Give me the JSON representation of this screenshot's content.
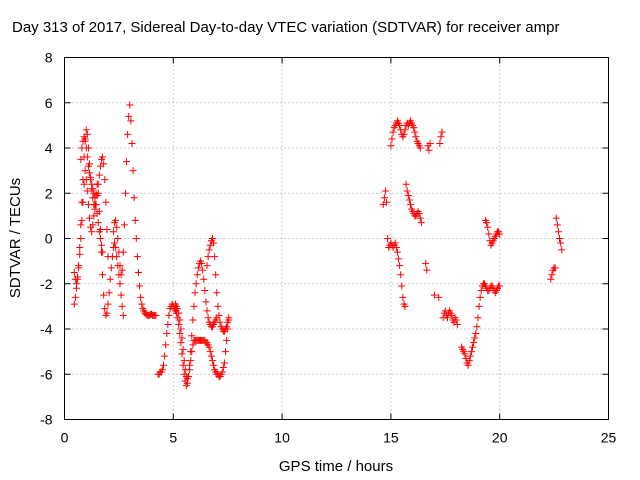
{
  "chart_data": {
    "type": "scatter",
    "title": "Day 313 of 2017, Sidereal Day-to-day VTEC variation (SDTVAR) for receiver ampr",
    "xlabel": "GPS time / hours",
    "ylabel": "SDTVAR / TECUs",
    "xlim": [
      0,
      25
    ],
    "ylim": [
      -8,
      8
    ],
    "xticks": [
      0,
      5,
      10,
      15,
      20,
      25
    ],
    "yticks": [
      -8,
      -6,
      -4,
      -2,
      0,
      2,
      4,
      6,
      8
    ],
    "xtick_labels": [
      "0",
      "5",
      "10",
      "15",
      "20",
      "25"
    ],
    "ytick_labels": [
      "-8",
      "-6",
      "-4",
      "-2",
      "0",
      "2",
      "4",
      "6",
      "8"
    ],
    "grid": true,
    "marker": "plus",
    "color": "#ff0000",
    "series": [
      {
        "name": "SDTVAR",
        "segments": [
          {
            "x": [
              0.45,
              0.5,
              0.55,
              0.6,
              0.65,
              0.7,
              0.75,
              0.8,
              0.85,
              0.9,
              0.95,
              1.0,
              1.05,
              1.1,
              1.15,
              1.2,
              1.25,
              1.3,
              1.35,
              1.4,
              1.45,
              1.5,
              1.55,
              1.6,
              1.65,
              1.7,
              1.75,
              1.8,
              1.85,
              1.9,
              1.95,
              2.0,
              2.05,
              2.1,
              2.15,
              2.2,
              2.25,
              2.3,
              2.35,
              2.4,
              2.45,
              2.5,
              2.55,
              2.6,
              2.65,
              2.7
            ],
            "y": [
              -2.9,
              -2.6,
              -2.2,
              -1.8,
              -1.3,
              -0.7,
              0.0,
              0.8,
              1.6,
              2.4,
              3.0,
              2.6,
              2.1,
              1.5,
              0.9,
              0.5,
              0.3,
              0.6,
              1.0,
              1.5,
              2.0,
              2.4,
              2.0,
              1.2,
              0.4,
              -0.6,
              -1.6,
              -2.5,
              -3.1,
              -3.4,
              -3.3,
              -2.9,
              -2.4,
              -1.8,
              -1.3,
              -0.8,
              -0.4,
              -0.2,
              -0.4,
              -0.8,
              -1.2,
              -1.6,
              -2.0,
              -2.5,
              -3.0,
              -3.4
            ]
          },
          {
            "x": [
              0.45,
              0.5,
              0.55,
              0.6,
              0.65,
              0.7,
              0.75,
              0.8,
              0.85,
              0.9,
              0.95,
              1.0,
              1.05,
              1.1,
              1.15,
              1.2,
              1.25,
              1.3,
              1.35,
              1.4,
              1.45,
              1.5,
              1.55,
              1.6,
              1.65,
              1.7,
              1.75,
              1.8,
              1.85,
              1.9,
              1.95,
              2.0
            ],
            "y": [
              -1.5,
              -1.8,
              -2.0,
              -1.7,
              -1.2,
              -0.4,
              0.6,
              1.6,
              2.6,
              3.6,
              4.3,
              4.8,
              4.6,
              4.0,
              3.3,
              2.7,
              2.2,
              1.8,
              1.5,
              1.3,
              1.5,
              1.9,
              2.4,
              2.8,
              3.2,
              3.5,
              3.6,
              3.3,
              2.6,
              1.6,
              0.4,
              -0.8
            ]
          },
          {
            "x": [
              0.75,
              0.8,
              0.85,
              0.9,
              0.95,
              1.0,
              1.05,
              1.1,
              1.15,
              1.2,
              1.25,
              1.3,
              1.35,
              1.4,
              1.45,
              1.5,
              1.55,
              1.6,
              1.65,
              1.7,
              1.75
            ],
            "y": [
              3.5,
              4.0,
              4.3,
              4.5,
              4.4,
              4.0,
              3.6,
              3.2,
              2.9,
              2.6,
              2.4,
              2.2,
              2.0,
              1.8,
              1.5,
              1.1,
              0.7,
              0.3,
              0.0,
              -0.3,
              -0.6
            ]
          },
          {
            "x": [
              2.25,
              2.3,
              2.35,
              2.4,
              2.45,
              2.5,
              2.55,
              2.6,
              2.65,
              2.7,
              2.75,
              2.8,
              2.85,
              2.9,
              2.95,
              3.0,
              3.05,
              3.1,
              3.15,
              3.2,
              3.25,
              3.3,
              3.35,
              3.4,
              3.45,
              3.5,
              3.55,
              3.6,
              3.65,
              3.7,
              3.75,
              3.8,
              3.85,
              3.9,
              3.95,
              4.0,
              4.05,
              4.1,
              4.15,
              4.2
            ],
            "y": [
              0.3,
              0.7,
              0.8,
              0.5,
              0.0,
              -0.6,
              -1.2,
              -1.6,
              -1.4,
              -0.6,
              0.6,
              2.0,
              3.4,
              4.6,
              5.4,
              5.9,
              5.2,
              4.2,
              3.0,
              1.8,
              0.8,
              0.0,
              -0.8,
              -1.5,
              -2.1,
              -2.6,
              -2.9,
              -3.1,
              -3.2,
              -3.3,
              -3.35,
              -3.4,
              -3.4,
              -3.4,
              -3.35,
              -3.35,
              -3.4,
              -3.4,
              -3.4,
              -3.4
            ]
          },
          {
            "x": [
              4.3,
              4.35,
              4.4,
              4.45,
              4.5,
              4.55,
              4.6,
              4.65,
              4.7,
              4.75,
              4.8,
              4.85,
              4.9,
              4.95,
              5.0,
              5.05,
              5.1,
              5.15,
              5.2,
              5.25,
              5.3,
              5.35,
              5.4,
              5.45,
              5.5,
              5.55,
              5.6,
              5.65,
              5.7,
              5.75,
              5.8,
              5.85,
              5.9,
              5.95,
              6.0,
              6.05,
              6.1,
              6.15,
              6.2,
              6.25,
              6.3,
              6.35,
              6.4,
              6.45,
              6.5,
              6.55,
              6.6,
              6.65,
              6.7,
              6.75,
              6.8,
              6.85,
              6.9,
              6.95,
              7.0
            ],
            "y": [
              -6.0,
              -6.0,
              -5.9,
              -5.9,
              -5.8,
              -5.6,
              -5.2,
              -4.7,
              -4.2,
              -3.8,
              -3.4,
              -3.1,
              -3.0,
              -2.9,
              -3.0,
              -3.1,
              -3.2,
              -3.3,
              -3.5,
              -3.8,
              -4.2,
              -4.6,
              -5.1,
              -5.6,
              -6.0,
              -6.3,
              -6.5,
              -6.4,
              -6.1,
              -5.6,
              -5.0,
              -4.3,
              -3.6,
              -3.0,
              -2.4,
              -2.0,
              -1.6,
              -1.3,
              -1.1,
              -1.0,
              -1.1,
              -1.4,
              -1.8,
              -2.3,
              -2.8,
              -3.2,
              -3.5,
              -3.7,
              -3.8,
              -3.9,
              -3.9,
              -3.8,
              -3.7,
              -3.6,
              -3.5
            ]
          },
          {
            "x": [
              5.1,
              5.15,
              5.2,
              5.25,
              5.3,
              5.35,
              5.4,
              5.45,
              5.5,
              5.55,
              5.6,
              5.65,
              5.7,
              5.75,
              5.8,
              5.85,
              5.9,
              5.95,
              6.0,
              6.05,
              6.1,
              6.15,
              6.2,
              6.25,
              6.3,
              6.35,
              6.4,
              6.45,
              6.5,
              6.55,
              6.6,
              6.65,
              6.7,
              6.75,
              6.8,
              6.85,
              6.9,
              6.95,
              7.0,
              7.05,
              7.1,
              7.15,
              7.2,
              7.25,
              7.3,
              7.35,
              7.4,
              7.45,
              7.5,
              7.55
            ],
            "y": [
              -2.9,
              -3.0,
              -3.1,
              -3.3,
              -3.6,
              -4.0,
              -4.4,
              -4.9,
              -5.4,
              -5.8,
              -6.1,
              -6.2,
              -6.1,
              -5.8,
              -5.4,
              -5.0,
              -4.7,
              -4.5,
              -4.5,
              -4.5,
              -4.5,
              -4.5,
              -4.5,
              -4.5,
              -4.5,
              -4.5,
              -4.5,
              -4.5,
              -4.6,
              -4.6,
              -4.7,
              -4.8,
              -5.0,
              -5.2,
              -5.4,
              -5.6,
              -5.8,
              -5.9,
              -6.0,
              -6.0,
              -6.1,
              -6.1,
              -6.0,
              -5.9,
              -5.7,
              -5.5,
              -5.0,
              -4.5,
              -4.0,
              -3.6
            ]
          },
          {
            "x": [
              6.55,
              6.6,
              6.65,
              6.7,
              6.75,
              6.8,
              6.85,
              6.9,
              6.95,
              7.0,
              7.05,
              7.1,
              7.15,
              7.2,
              7.25,
              7.3,
              7.35,
              7.4,
              7.45,
              7.5,
              7.55
            ],
            "y": [
              -1.2,
              -0.8,
              -0.5,
              -0.3,
              -0.1,
              0.0,
              -0.2,
              -0.8,
              -1.6,
              -2.4,
              -3.0,
              -3.4,
              -3.7,
              -3.9,
              -4.0,
              -4.1,
              -4.1,
              -4.0,
              -3.9,
              -3.7,
              -3.5
            ]
          },
          {
            "x": [
              14.65,
              14.7,
              14.75,
              14.8,
              14.85,
              14.9,
              14.95,
              15.0,
              15.05,
              15.1,
              15.15,
              15.2,
              15.25,
              15.3,
              15.35,
              15.4,
              15.45,
              15.5,
              15.55,
              15.6,
              15.65,
              15.7,
              15.75,
              15.8,
              15.85,
              15.9,
              15.95,
              16.0,
              16.05,
              16.1,
              16.15,
              16.2,
              16.25,
              16.3,
              16.35,
              16.4
            ],
            "y": [
              1.5,
              1.8,
              2.1,
              1.6,
              0.0,
              -0.4,
              -0.3,
              -0.2,
              -0.3,
              -0.4,
              -0.3,
              -0.2,
              -0.4,
              -0.6,
              -0.9,
              -1.2,
              -1.6,
              -2.1,
              -2.6,
              -2.9,
              -3.0,
              2.4,
              2.1,
              1.9,
              1.7,
              1.5,
              1.3,
              1.2,
              1.1,
              1.0,
              1.0,
              1.1,
              1.2,
              1.1,
              0.9,
              0.7
            ]
          },
          {
            "x": [
              15.0,
              15.05,
              15.1,
              15.15,
              15.2,
              15.25,
              15.3,
              15.35,
              15.4,
              15.45,
              15.5,
              15.55,
              15.6,
              15.65,
              15.7,
              15.75,
              15.8,
              15.85,
              15.9,
              15.95,
              16.0,
              16.05,
              16.1,
              16.15,
              16.2,
              16.25,
              16.3,
              16.35
            ],
            "y": [
              4.1,
              4.4,
              4.7,
              4.9,
              5.0,
              5.1,
              5.2,
              5.1,
              5.0,
              4.8,
              4.6,
              4.5,
              4.6,
              4.8,
              5.0,
              5.1,
              5.0,
              5.1,
              5.2,
              5.1,
              5.0,
              4.9,
              4.7,
              4.5,
              4.3,
              4.2,
              4.1,
              4.0
            ]
          },
          {
            "x": [
              16.6,
              16.65,
              16.7,
              16.75,
              16.8,
              17.0,
              17.2,
              17.25,
              17.3,
              17.35,
              17.4,
              17.45,
              17.5,
              17.55,
              17.6,
              17.65,
              17.7,
              17.75,
              17.8,
              17.85,
              17.9,
              17.95,
              18.0,
              18.05
            ],
            "y": [
              -1.1,
              -1.4,
              4.1,
              3.9,
              4.2,
              -2.5,
              -2.6,
              4.2,
              4.5,
              4.7,
              -3.5,
              -3.3,
              -3.2,
              -3.4,
              -3.5,
              -3.3,
              -3.2,
              -3.3,
              -3.4,
              -3.6,
              -3.7,
              -3.5,
              -3.6,
              -3.8
            ]
          },
          {
            "x": [
              18.25,
              18.3,
              18.35,
              18.4,
              18.45,
              18.5,
              18.55,
              18.6,
              18.65,
              18.7,
              18.75,
              18.8,
              18.85,
              18.9,
              18.95,
              19.0,
              19.05,
              19.1,
              19.15,
              19.2,
              19.25,
              19.3,
              19.35,
              19.4,
              19.45,
              19.5,
              19.55,
              19.6,
              19.65,
              19.7,
              19.75,
              19.8,
              19.85,
              19.9,
              19.95,
              20.0
            ],
            "y": [
              -4.8,
              -4.9,
              -5.0,
              -5.1,
              -5.3,
              -5.5,
              -5.6,
              -5.4,
              -5.2,
              -5.0,
              -4.8,
              -4.6,
              -4.4,
              -4.2,
              -3.9,
              -3.5,
              -3.0,
              -2.6,
              -2.3,
              -2.1,
              -2.0,
              -2.0,
              -2.1,
              -2.2,
              -2.3,
              -2.3,
              -2.2,
              -2.1,
              -2.1,
              -2.2,
              -2.3,
              -2.4,
              -2.3,
              -2.2,
              -2.1,
              -2.1
            ]
          },
          {
            "x": [
              19.35,
              19.4,
              19.45,
              19.5,
              19.55,
              19.6,
              19.65,
              19.7,
              19.75,
              19.8,
              19.85,
              19.9,
              19.95,
              20.0
            ],
            "y": [
              0.8,
              0.7,
              0.5,
              0.2,
              -0.1,
              -0.3,
              -0.2,
              -0.1,
              0.0,
              0.1,
              0.2,
              0.3,
              0.3,
              0.2
            ]
          },
          {
            "x": [
              22.35,
              22.4,
              22.45,
              22.5,
              22.55,
              22.6,
              22.65,
              22.7,
              22.75,
              22.8,
              22.85
            ],
            "y": [
              -1.8,
              -1.6,
              -1.4,
              -1.3,
              -1.3,
              0.9,
              0.6,
              0.3,
              0.0,
              -0.2,
              -0.5
            ]
          }
        ]
      }
    ]
  }
}
